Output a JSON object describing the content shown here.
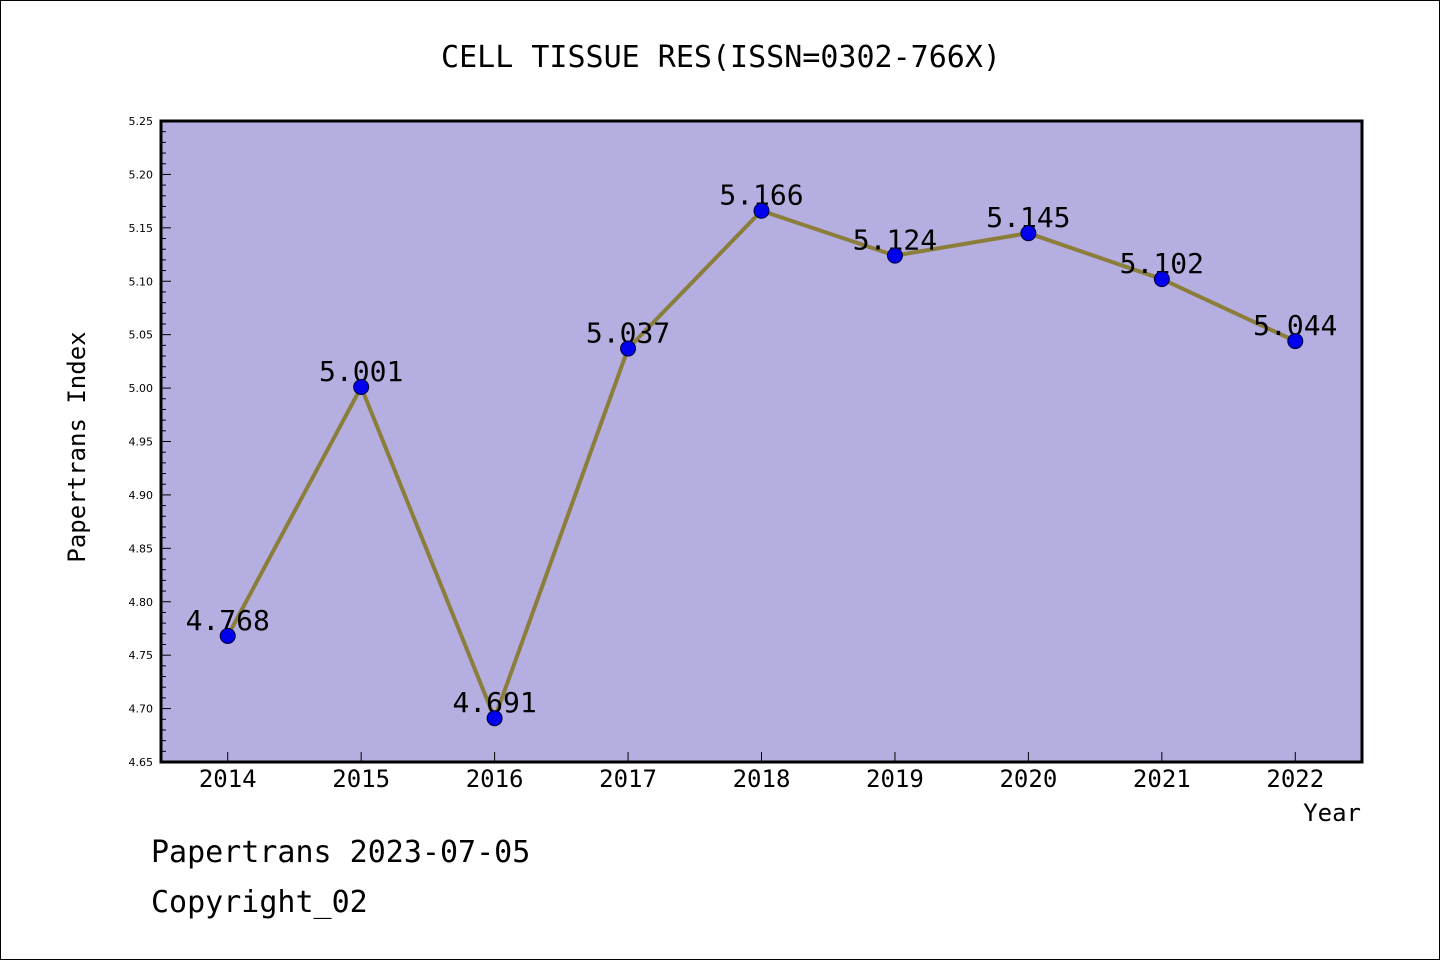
{
  "chart_data": {
    "type": "line",
    "title": "CELL TISSUE RES(ISSN=0302-766X)",
    "xlabel": "Year",
    "ylabel": "Papertrans Index",
    "categories": [
      "2014",
      "2015",
      "2016",
      "2017",
      "2018",
      "2019",
      "2020",
      "2021",
      "2022"
    ],
    "values": [
      4.768,
      5.001,
      4.691,
      5.037,
      5.166,
      5.124,
      5.145,
      5.102,
      5.044
    ],
    "data_labels": [
      "4.768",
      "5.001",
      "4.691",
      "5.037",
      "5.166",
      "5.124",
      "5.145",
      "5.102",
      "5.044"
    ],
    "ylim": [
      4.65,
      5.25
    ],
    "yticks": [
      "4.65",
      "4.70",
      "4.75",
      "4.80",
      "4.85",
      "4.90",
      "4.95",
      "5.00",
      "5.05",
      "5.10",
      "5.15",
      "5.20",
      "5.25"
    ],
    "grid": false,
    "colors": {
      "plot_background": "#b5afe1",
      "line": "#8b7d3a",
      "marker": "#0000ee",
      "axis": "#000000"
    }
  },
  "footer": {
    "line1": "Papertrans 2023-07-05",
    "line2": "Copyright_02"
  }
}
